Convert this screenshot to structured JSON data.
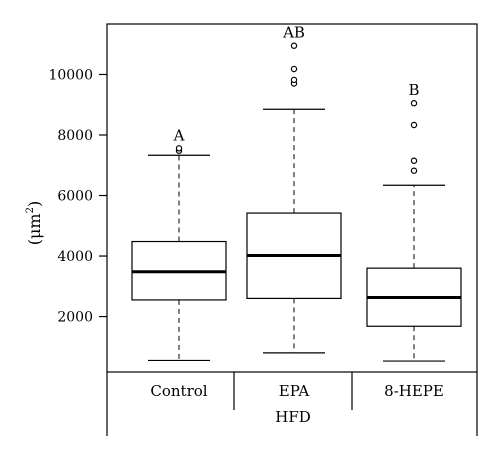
{
  "chart_data": {
    "type": "box",
    "ylabel_main": "(μm",
    "ylabel_sup": "2",
    "ylabel_close": ")",
    "yticks": [
      2000,
      4000,
      6000,
      8000,
      10000
    ],
    "ylim": [
      0,
      11500
    ],
    "categories": [
      "Control",
      "EPA",
      "8-HEPE"
    ],
    "group_label": "HFD",
    "boxes": [
      {
        "category": "Control",
        "whisker_low": 550,
        "q1": 2550,
        "median": 3480,
        "q3": 4480,
        "whisker_high": 7330,
        "outliers": [
          7480,
          7560
        ],
        "sig_label": "A"
      },
      {
        "category": "EPA",
        "whisker_low": 800,
        "q1": 2600,
        "median": 4020,
        "q3": 5420,
        "whisker_high": 8850,
        "outliers": [
          9700,
          9820,
          10180,
          10950
        ],
        "sig_label": "AB"
      },
      {
        "category": "8-HEPE",
        "whisker_low": 530,
        "q1": 1680,
        "median": 2630,
        "q3": 3600,
        "whisker_high": 6340,
        "outliers": [
          6820,
          7150,
          8330,
          9050
        ],
        "sig_label": "B"
      }
    ]
  }
}
